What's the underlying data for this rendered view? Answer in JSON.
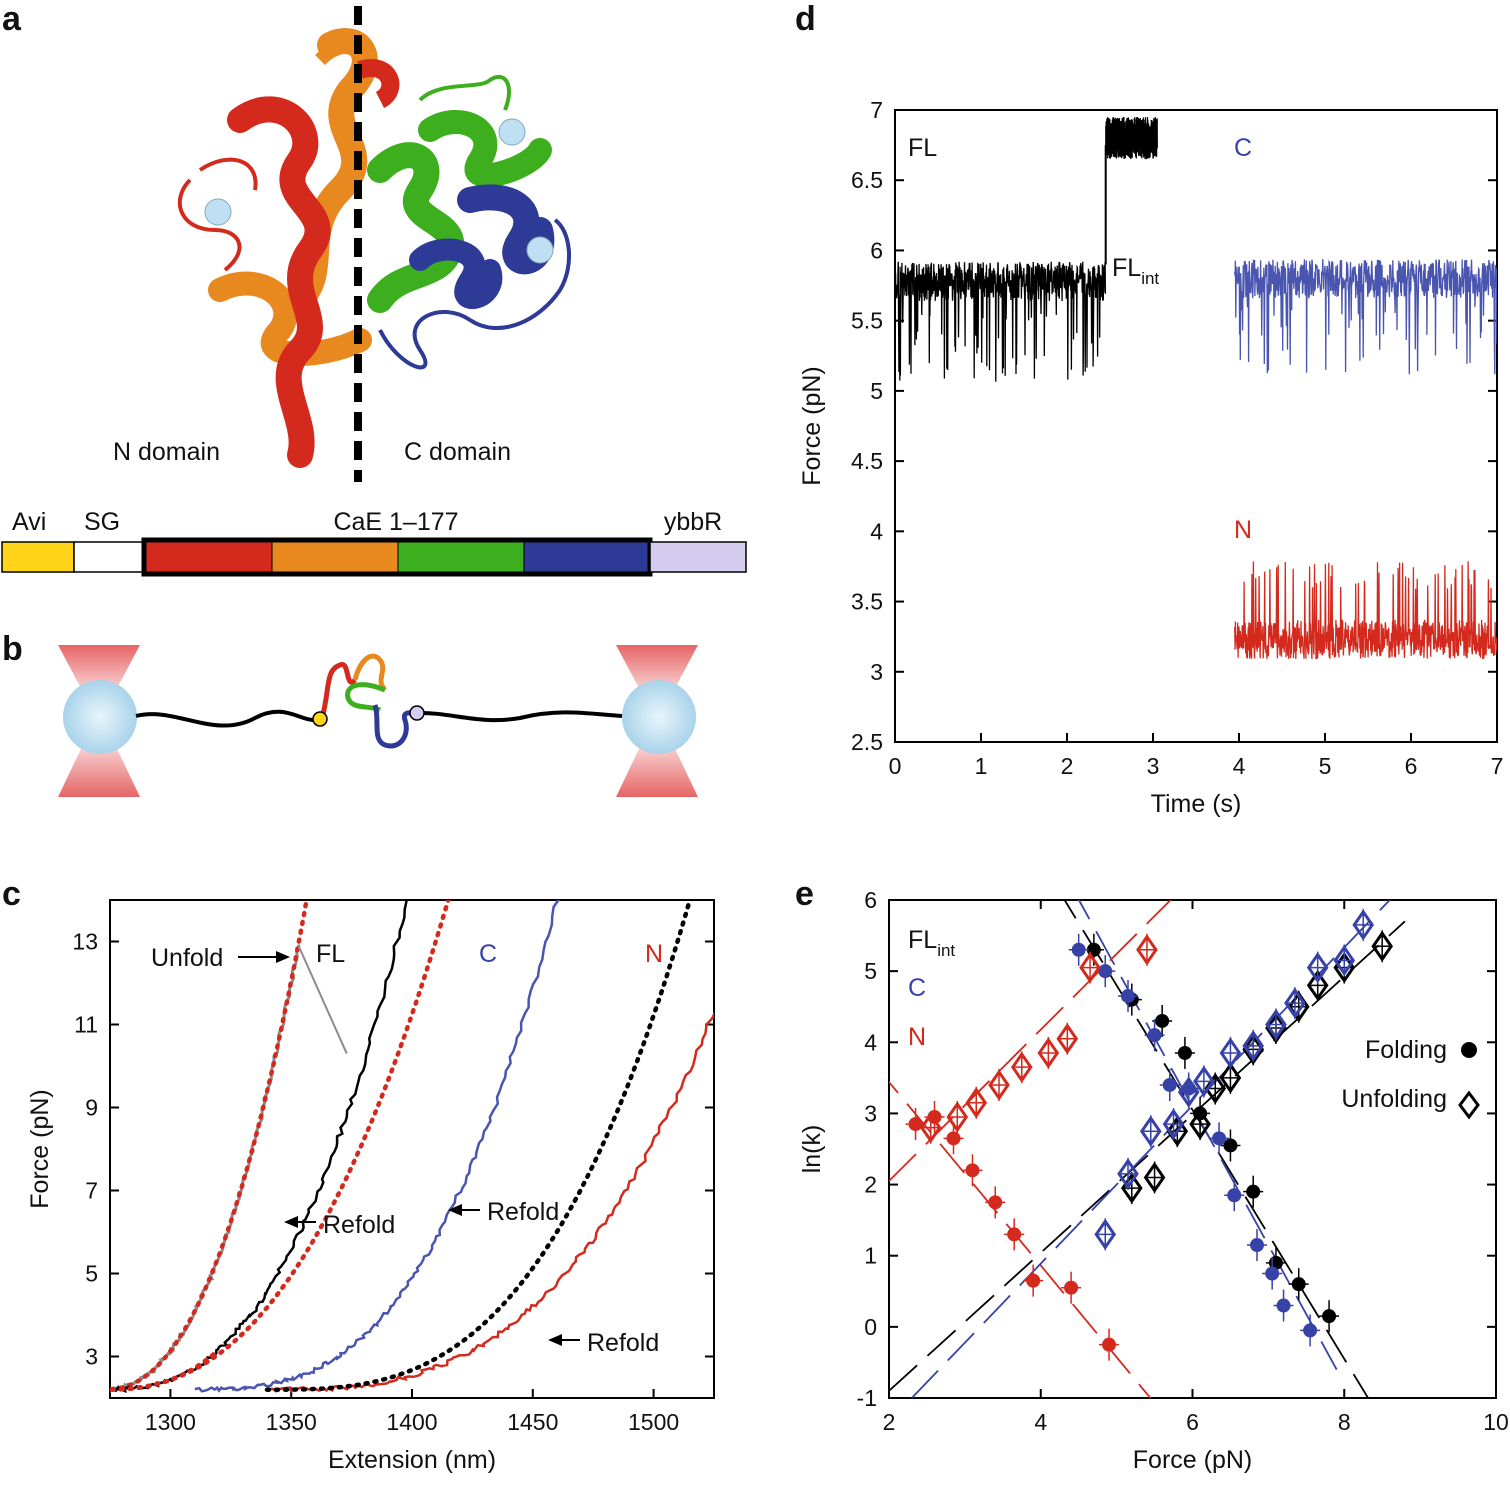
{
  "panel_labels": {
    "a": "a",
    "b": "b",
    "c": "c",
    "d": "d",
    "e": "e"
  },
  "colors": {
    "red": "#d42a1e",
    "orange": "#e8891f",
    "green": "#3daf1f",
    "blue": "#2d3a96",
    "blue_trace": "#4a55b0",
    "avi": "#ffd419",
    "ybbr": "#d4cdef",
    "grey": "#8c8c8c",
    "bead": "#bfe0f2",
    "laser": "#e24a4a"
  },
  "panel_a": {
    "n_domain": "N domain",
    "c_domain": "C domain",
    "construct": {
      "avi": "Avi",
      "sg": "SG",
      "cae": "CaE 1–177",
      "ybbr": "ybbR"
    }
  },
  "chart_data": [
    {
      "id": "c",
      "type": "line",
      "xlabel": "Extension (nm)",
      "ylabel": "Force (pN)",
      "xlim": [
        1275,
        1525
      ],
      "ylim": [
        2,
        14
      ],
      "xticks": [
        1300,
        1350,
        1400,
        1450,
        1500
      ],
      "yticks": [
        3,
        5,
        7,
        9,
        11,
        13
      ],
      "annotations": {
        "unfold": "Unfold",
        "refold": "Refold",
        "fl": "FL",
        "c": "C",
        "n": "N"
      }
    },
    {
      "id": "d",
      "type": "line",
      "xlabel": "Time (s)",
      "ylabel": "Force (pN)",
      "xlim": [
        0,
        7
      ],
      "ylim": [
        2.5,
        7
      ],
      "xticks": [
        0,
        1,
        2,
        3,
        4,
        5,
        6,
        7
      ],
      "yticks": [
        2.5,
        3,
        3.5,
        4,
        4.5,
        5,
        5.5,
        6,
        6.5,
        7
      ],
      "ytick_labels": [
        "2.5",
        "3",
        "3.5",
        "4",
        "4.5",
        "5",
        "5.5",
        "6",
        "6.5",
        "7"
      ],
      "annotations": {
        "fl": "FL",
        "fl_int_base": "FL",
        "fl_int_sub": "int",
        "c": "C",
        "n": "N"
      },
      "series": [
        {
          "name": "FL",
          "t": [
            0,
            2.45
          ],
          "level": 5.78,
          "low": 5.05
        },
        {
          "name": "FL_high",
          "t": [
            2.45,
            3.05
          ],
          "level": 6.8
        },
        {
          "name": "C",
          "t": [
            3.95,
            7
          ],
          "level": 5.8,
          "low": 5.1
        },
        {
          "name": "N",
          "t": [
            3.95,
            7
          ],
          "level": 3.23,
          "high": 3.65
        }
      ]
    },
    {
      "id": "e",
      "type": "scatter",
      "xlabel": "Force (pN)",
      "ylabel": "ln(k)",
      "xlim": [
        2,
        10
      ],
      "ylim": [
        -1,
        6
      ],
      "xticks": [
        2,
        4,
        6,
        8,
        10
      ],
      "yticks": [
        -1,
        0,
        1,
        2,
        3,
        4,
        5,
        6
      ],
      "legend": {
        "position": "right",
        "folding": "Folding",
        "unfolding": "Unfolding"
      },
      "annotations": {
        "fl_int_base": "FL",
        "fl_int_sub": "int",
        "c": "C",
        "n": "N"
      },
      "series": [
        {
          "name": "FL_int folding",
          "x": [
            4.7,
            5.2,
            5.6,
            5.9,
            6.1,
            6.5,
            6.8,
            7.1,
            7.4,
            7.8
          ],
          "y": [
            5.3,
            4.6,
            4.3,
            3.85,
            3.0,
            2.55,
            1.9,
            0.9,
            0.6,
            0.15
          ]
        },
        {
          "name": "C folding",
          "x": [
            4.5,
            4.85,
            5.15,
            5.5,
            5.7,
            5.95,
            6.35,
            6.55,
            6.85,
            7.05,
            7.2,
            7.55
          ],
          "y": [
            5.3,
            5.0,
            4.65,
            4.1,
            3.4,
            3.35,
            2.65,
            1.85,
            1.15,
            0.75,
            0.3,
            -0.05
          ]
        },
        {
          "name": "N folding",
          "x": [
            2.35,
            2.6,
            2.85,
            3.1,
            3.4,
            3.65,
            3.9,
            4.4,
            4.9
          ],
          "y": [
            2.85,
            2.95,
            2.65,
            2.2,
            1.75,
            1.3,
            0.65,
            0.55,
            -0.25
          ]
        },
        {
          "name": "FL_int unfolding",
          "x": [
            5.2,
            5.5,
            5.8,
            6.1,
            6.3,
            6.5,
            6.8,
            7.1,
            7.4,
            7.65,
            8.0,
            8.5
          ],
          "y": [
            1.95,
            2.1,
            2.75,
            2.85,
            3.35,
            3.5,
            3.9,
            4.2,
            4.5,
            4.8,
            5.05,
            5.35
          ]
        },
        {
          "name": "C unfolding",
          "x": [
            4.85,
            5.15,
            5.45,
            5.75,
            5.95,
            6.15,
            6.5,
            6.8,
            7.1,
            7.35,
            7.65,
            8.0,
            8.25
          ],
          "y": [
            1.3,
            2.15,
            2.75,
            2.85,
            3.3,
            3.45,
            3.85,
            3.95,
            4.25,
            4.55,
            5.05,
            5.15,
            5.65
          ]
        },
        {
          "name": "N unfolding",
          "x": [
            2.55,
            2.9,
            3.15,
            3.45,
            3.75,
            4.1,
            4.35,
            4.65,
            5.4
          ],
          "y": [
            2.8,
            2.95,
            3.15,
            3.4,
            3.65,
            3.85,
            4.05,
            5.05,
            5.3
          ]
        }
      ]
    }
  ]
}
